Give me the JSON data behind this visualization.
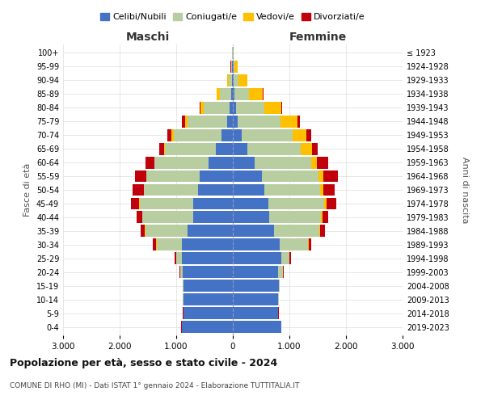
{
  "age_groups": [
    "0-4",
    "5-9",
    "10-14",
    "15-19",
    "20-24",
    "25-29",
    "30-34",
    "35-39",
    "40-44",
    "45-49",
    "50-54",
    "55-59",
    "60-64",
    "65-69",
    "70-74",
    "75-79",
    "80-84",
    "85-89",
    "90-94",
    "95-99",
    "100+"
  ],
  "birth_years": [
    "2019-2023",
    "2014-2018",
    "2009-2013",
    "2004-2008",
    "1999-2003",
    "1994-1998",
    "1989-1993",
    "1984-1988",
    "1979-1983",
    "1974-1978",
    "1969-1973",
    "1964-1968",
    "1959-1963",
    "1954-1958",
    "1949-1953",
    "1944-1948",
    "1939-1943",
    "1934-1938",
    "1929-1933",
    "1924-1928",
    "≤ 1923"
  ],
  "maschi": {
    "celibi": [
      900,
      870,
      870,
      870,
      880,
      900,
      900,
      800,
      700,
      700,
      620,
      580,
      430,
      300,
      200,
      100,
      60,
      30,
      20,
      10,
      5
    ],
    "coniugati": [
      5,
      5,
      10,
      10,
      50,
      100,
      450,
      750,
      900,
      950,
      950,
      950,
      950,
      900,
      850,
      700,
      450,
      200,
      50,
      15,
      5
    ],
    "vedovi": [
      2,
      2,
      2,
      2,
      5,
      5,
      5,
      5,
      5,
      5,
      5,
      5,
      10,
      20,
      30,
      50,
      60,
      50,
      30,
      10,
      2
    ],
    "divorziati": [
      2,
      2,
      2,
      5,
      10,
      30,
      60,
      80,
      100,
      150,
      200,
      200,
      150,
      80,
      80,
      50,
      20,
      10,
      5,
      3,
      1
    ]
  },
  "femmine": {
    "nubili": [
      850,
      800,
      800,
      810,
      800,
      850,
      830,
      730,
      640,
      630,
      560,
      520,
      380,
      250,
      150,
      90,
      50,
      30,
      20,
      10,
      5
    ],
    "coniugate": [
      5,
      5,
      10,
      15,
      80,
      150,
      500,
      800,
      920,
      980,
      980,
      1000,
      1000,
      950,
      900,
      750,
      500,
      250,
      80,
      20,
      5
    ],
    "vedove": [
      2,
      2,
      2,
      2,
      5,
      5,
      10,
      15,
      20,
      40,
      60,
      80,
      100,
      200,
      250,
      300,
      300,
      250,
      150,
      50,
      10
    ],
    "divorziate": [
      2,
      2,
      2,
      5,
      10,
      20,
      50,
      80,
      100,
      180,
      200,
      250,
      200,
      100,
      80,
      50,
      20,
      10,
      5,
      3,
      1
    ]
  },
  "colors": {
    "celibi": "#4472c4",
    "coniugati": "#b8cda0",
    "vedovi": "#ffc000",
    "divorziati": "#c0000b"
  },
  "title": "Popolazione per età, sesso e stato civile - 2024",
  "subtitle": "COMUNE DI RHO (MI) - Dati ISTAT 1° gennaio 2024 - Elaborazione TUTTITALIA.IT",
  "xlabel_left": "Maschi",
  "xlabel_right": "Femmine",
  "ylabel_left": "Fasce di età",
  "ylabel_right": "Anni di nascita",
  "xlim": 3000,
  "background_color": "#ffffff"
}
